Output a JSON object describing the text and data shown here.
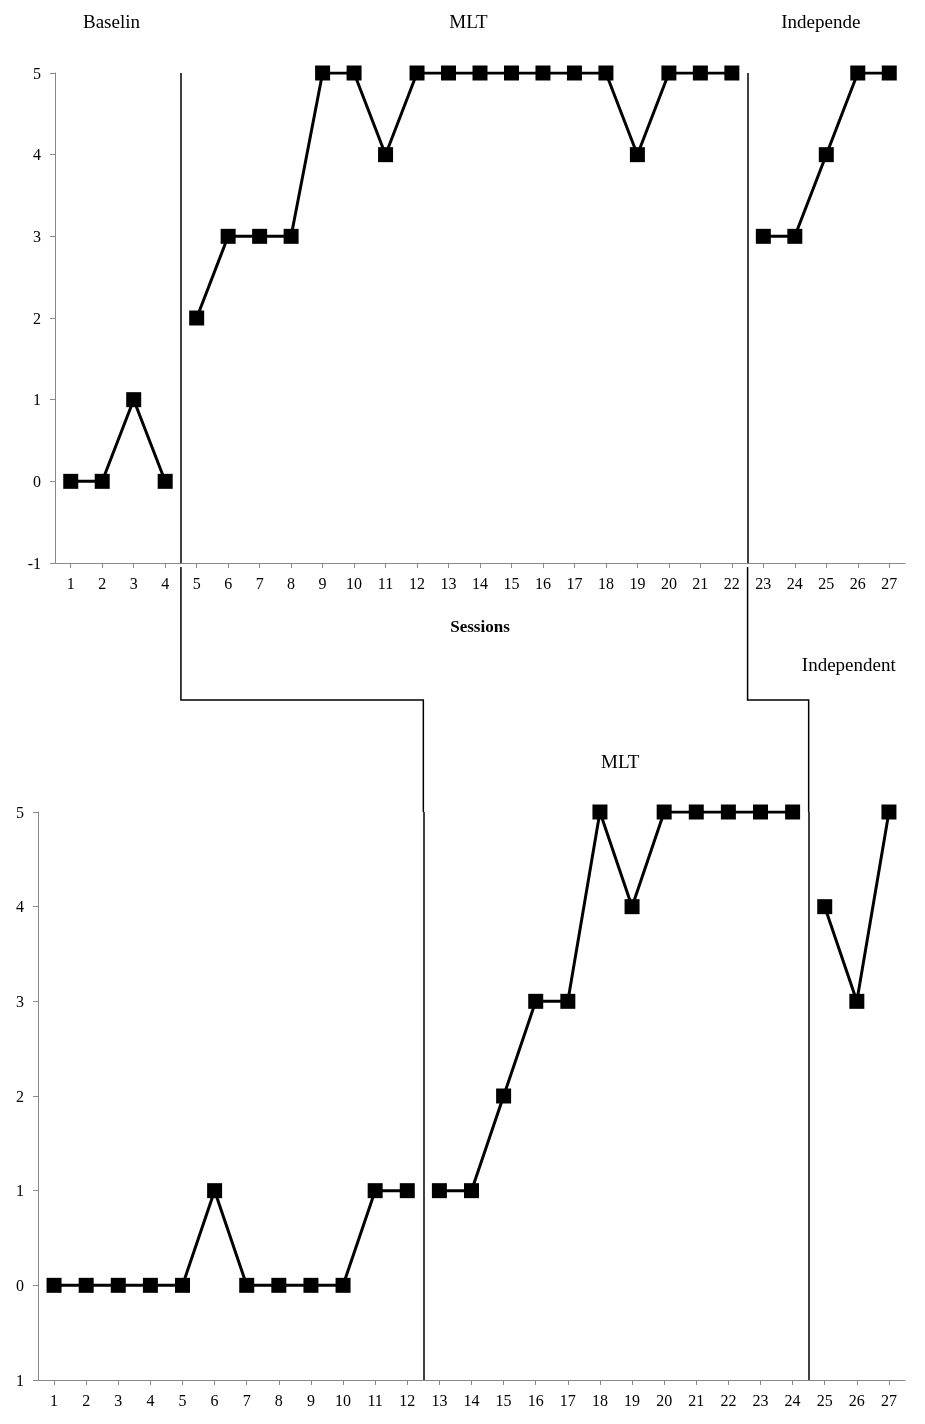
{
  "chart_data": [
    {
      "type": "line",
      "xlabel": "Sessions",
      "x": [
        1,
        2,
        3,
        4,
        5,
        6,
        7,
        8,
        9,
        10,
        11,
        12,
        13,
        14,
        15,
        16,
        17,
        18,
        19,
        20,
        21,
        22,
        23,
        24,
        25,
        26,
        27
      ],
      "xlim": [
        0.5,
        27.5
      ],
      "xticks": [
        1,
        2,
        3,
        4,
        5,
        6,
        7,
        8,
        9,
        10,
        11,
        12,
        13,
        14,
        15,
        16,
        17,
        18,
        19,
        20,
        21,
        22,
        23,
        24,
        25,
        26,
        27
      ],
      "ylim": [
        -1,
        5
      ],
      "yticks": [
        -1,
        0,
        1,
        2,
        3,
        4,
        5
      ],
      "series": [
        {
          "color": "#000000",
          "values": [
            0,
            0,
            1,
            0,
            null,
            null,
            null,
            null,
            null,
            null,
            null,
            null,
            null,
            null,
            null,
            null,
            null,
            null,
            null,
            null,
            null,
            null,
            null,
            null,
            null,
            null,
            null
          ]
        },
        {
          "color": "#000000",
          "values": [
            null,
            null,
            null,
            null,
            2,
            3,
            3,
            3,
            5,
            5,
            4,
            5,
            5,
            5,
            5,
            5,
            5,
            5,
            4,
            5,
            5,
            5,
            null,
            null,
            null,
            null,
            null
          ]
        },
        {
          "color": "#000000",
          "values": [
            null,
            null,
            null,
            null,
            null,
            null,
            null,
            null,
            null,
            null,
            null,
            null,
            null,
            null,
            null,
            null,
            null,
            null,
            null,
            null,
            null,
            null,
            3,
            3,
            4,
            5,
            5
          ]
        }
      ],
      "ref_lines": [
        {
          "axis": "x",
          "value": 4.5,
          "color": "#000000"
        },
        {
          "axis": "x",
          "value": 22.5,
          "color": "#000000"
        }
      ],
      "annotations": [
        "Baselin",
        "MLT",
        "Independe"
      ],
      "marker": "square",
      "line_style": "solid",
      "grid": false
    },
    {
      "type": "line",
      "x": [
        1,
        2,
        3,
        4,
        5,
        6,
        7,
        8,
        9,
        10,
        11,
        12,
        13,
        14,
        15,
        16,
        17,
        18,
        19,
        20,
        21,
        22,
        23,
        24,
        25,
        26,
        27
      ],
      "xlim": [
        0.5,
        27.5
      ],
      "xticks": [
        1,
        2,
        3,
        4,
        5,
        6,
        7,
        8,
        9,
        10,
        11,
        12,
        13,
        14,
        15,
        16,
        17,
        18,
        19,
        20,
        21,
        22,
        23,
        24,
        25,
        26,
        27
      ],
      "ylim": [
        -1,
        5
      ],
      "yticks": [
        {
          "value": -1,
          "label": "1"
        },
        0,
        1,
        2,
        3,
        4,
        5
      ],
      "series": [
        {
          "color": "#000000",
          "values": [
            0,
            0,
            0,
            0,
            0,
            1,
            0,
            0,
            0,
            0,
            1,
            1,
            null,
            null,
            null,
            null,
            null,
            null,
            null,
            null,
            null,
            null,
            null,
            null,
            null,
            null,
            null
          ]
        },
        {
          "color": "#000000",
          "values": [
            null,
            null,
            null,
            null,
            null,
            null,
            null,
            null,
            null,
            null,
            null,
            null,
            1,
            1,
            2,
            3,
            3,
            5,
            4,
            5,
            5,
            5,
            5,
            5,
            null,
            null,
            null
          ]
        },
        {
          "color": "#000000",
          "values": [
            null,
            null,
            null,
            null,
            null,
            null,
            null,
            null,
            null,
            null,
            null,
            null,
            null,
            null,
            null,
            null,
            null,
            null,
            null,
            null,
            null,
            null,
            null,
            null,
            4,
            3,
            5
          ]
        }
      ],
      "ref_lines": [
        {
          "axis": "x",
          "value": 12.5,
          "color": "#000000"
        },
        {
          "axis": "x",
          "value": 24.5,
          "color": "#000000"
        }
      ],
      "annotations": [
        "MLT",
        "Independent"
      ],
      "marker": "square",
      "line_style": "solid",
      "grid": false
    }
  ]
}
